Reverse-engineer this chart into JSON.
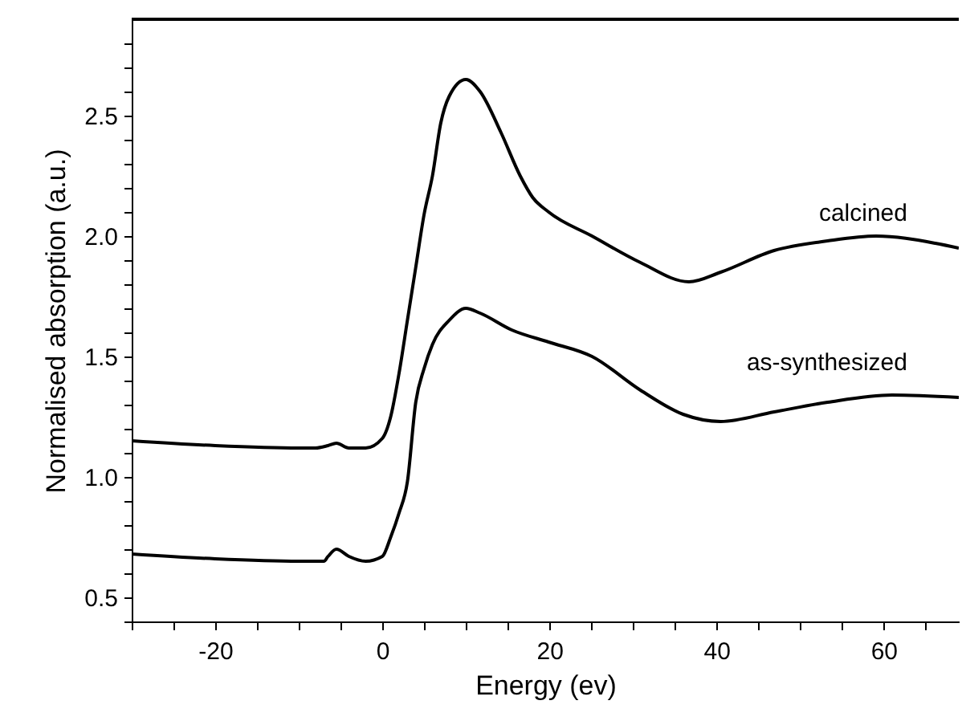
{
  "chart_data": {
    "type": "line",
    "xlabel": "Energy (ev)",
    "ylabel": "Normalised absorption (a.u.)",
    "xlim": [
      -30,
      69
    ],
    "ylim": [
      0.4,
      2.9
    ],
    "xticks": [
      {
        "value": -30,
        "label": null
      },
      {
        "value": -25,
        "label": null
      },
      -20,
      {
        "value": -15,
        "label": null
      },
      {
        "value": -10,
        "label": null
      },
      {
        "value": -5,
        "label": null
      },
      0,
      {
        "value": 5,
        "label": null
      },
      {
        "value": 10,
        "label": null
      },
      {
        "value": 15,
        "label": null
      },
      20,
      {
        "value": 25,
        "label": null
      },
      {
        "value": 30,
        "label": null
      },
      {
        "value": 35,
        "label": null
      },
      40,
      {
        "value": 45,
        "label": null
      },
      {
        "value": 50,
        "label": null
      },
      {
        "value": 55,
        "label": null
      },
      60,
      {
        "value": 65,
        "label": null
      }
    ],
    "yticks": [
      {
        "value": 0.4,
        "label": null
      },
      0.5,
      {
        "value": 0.6,
        "label": null
      },
      {
        "value": 0.7,
        "label": null
      },
      {
        "value": 0.8,
        "label": null
      },
      {
        "value": 0.9,
        "label": null
      },
      {
        "value": 1,
        "label": "1.0"
      },
      {
        "value": 1.1,
        "label": null
      },
      {
        "value": 1.2,
        "label": null
      },
      {
        "value": 1.3,
        "label": null
      },
      {
        "value": 1.4,
        "label": null
      },
      1.5,
      {
        "value": 1.6,
        "label": null
      },
      {
        "value": 1.7,
        "label": null
      },
      {
        "value": 1.8,
        "label": null
      },
      {
        "value": 1.9,
        "label": null
      },
      {
        "value": 2,
        "label": "2.0"
      },
      {
        "value": 2.1,
        "label": null
      },
      {
        "value": 2.2,
        "label": null
      },
      {
        "value": 2.3,
        "label": null
      },
      {
        "value": 2.4,
        "label": null
      },
      2.5,
      {
        "value": 2.6,
        "label": null
      },
      {
        "value": 2.7,
        "label": null
      },
      {
        "value": 2.8,
        "label": null
      }
    ],
    "grid": false,
    "series": [
      {
        "name": "calcined",
        "color": "#000000",
        "x": [
          -30,
          -20,
          -10,
          -8,
          -6.5,
          -5.5,
          -4,
          -2,
          0,
          1,
          2,
          3,
          4,
          5,
          6,
          7,
          8,
          10,
          11.7,
          14.2,
          16.5,
          18,
          19.9,
          25.1,
          30.9,
          36.7,
          40.5,
          46.9,
          53.3,
          59.1,
          66.2,
          69
        ],
        "values": [
          1.15,
          1.13,
          1.12,
          1.12,
          1.13,
          1.14,
          1.12,
          1.12,
          1.16,
          1.25,
          1.43,
          1.65,
          1.87,
          2.09,
          2.25,
          2.47,
          2.58,
          2.65,
          2.6,
          2.43,
          2.25,
          2.16,
          2.1,
          2.0,
          1.89,
          1.81,
          1.85,
          1.94,
          1.98,
          2.0,
          1.97,
          1.95
        ]
      },
      {
        "name": "as-synthesized",
        "color": "#000000",
        "x": [
          -30,
          -20,
          -10,
          -7,
          -6.5,
          -5.5,
          -4,
          -2,
          0,
          1,
          2,
          3,
          4,
          5,
          6,
          8,
          10,
          11.7,
          15.5,
          19.9,
          25.1,
          30.9,
          36,
          40.5,
          46.9,
          53.3,
          61,
          69
        ],
        "values": [
          0.68,
          0.66,
          0.65,
          0.65,
          0.67,
          0.7,
          0.67,
          0.65,
          0.67,
          0.75,
          0.85,
          0.98,
          1.31,
          1.45,
          1.55,
          1.65,
          1.7,
          1.68,
          1.61,
          1.56,
          1.5,
          1.36,
          1.26,
          1.23,
          1.27,
          1.31,
          1.34,
          1.33
        ]
      }
    ]
  }
}
